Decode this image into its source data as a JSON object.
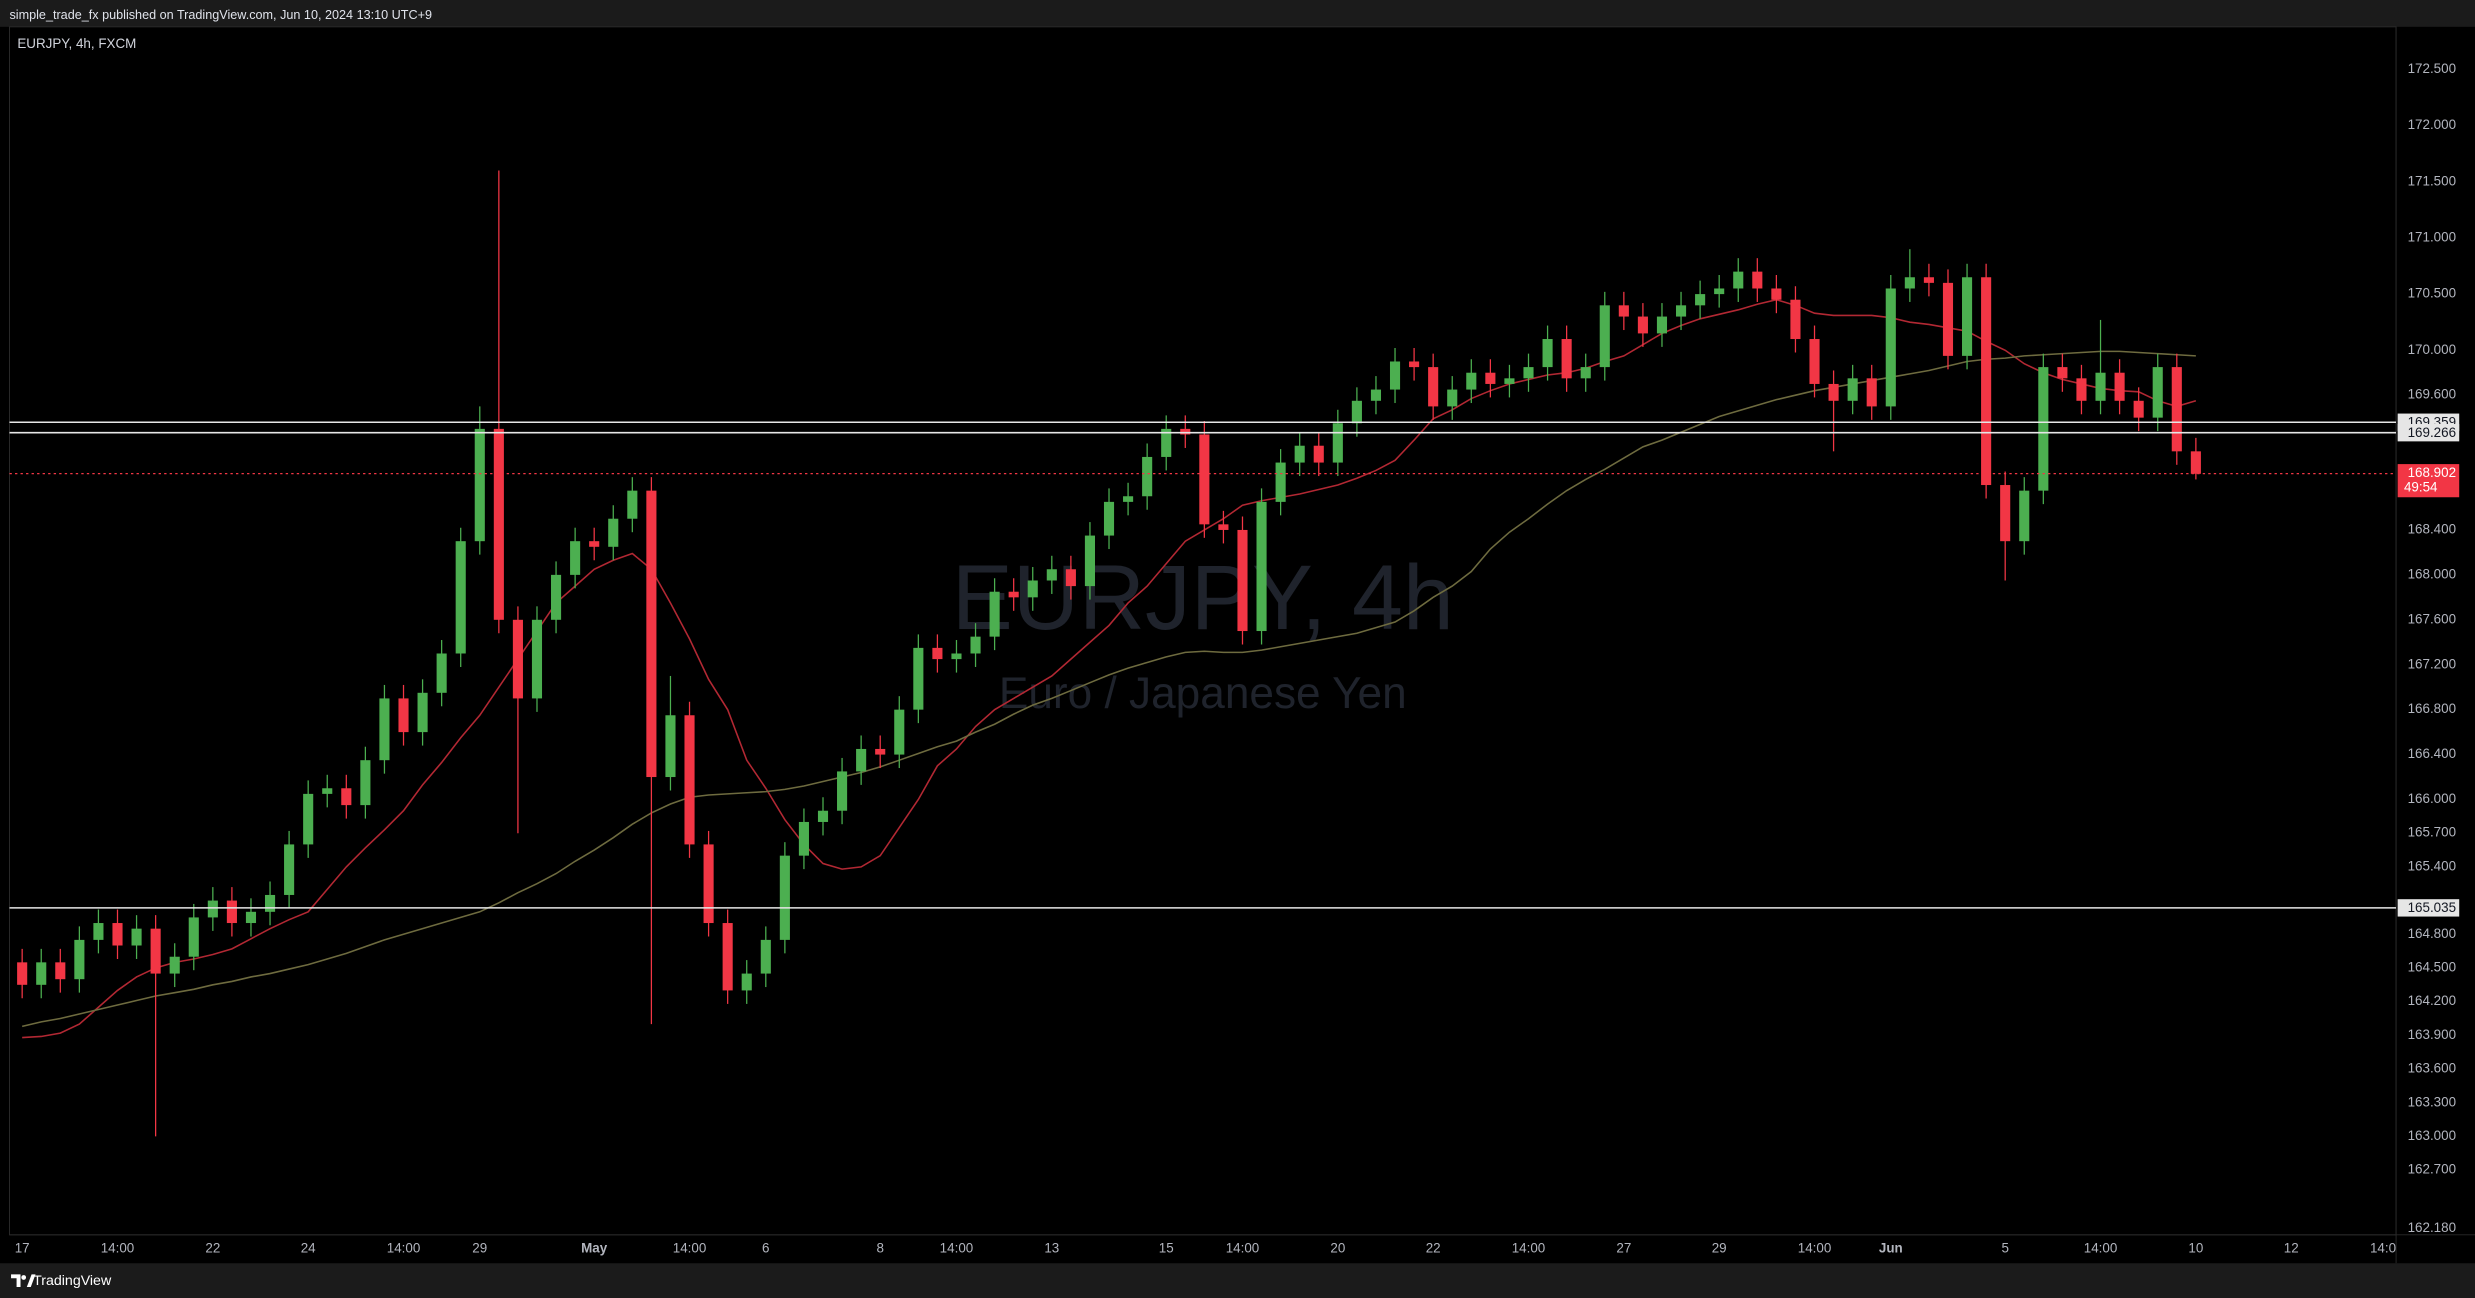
{
  "header": {
    "publisher": "simple_trade_fx published on TradingView.com, Jun 10, 2024 13:10 UTC+9"
  },
  "chart_data": {
    "type": "candlestick",
    "symbol": "EURJPY, 4h, FXCM",
    "watermark": "EURJPY, 4h",
    "watermark_subtitle": "Euro / Japanese Yen",
    "categories": [
      "17",
      null,
      null,
      null,
      null,
      "14:00",
      null,
      null,
      null,
      null,
      "22",
      null,
      null,
      null,
      null,
      "24",
      null,
      null,
      null,
      null,
      "14:00",
      null,
      null,
      null,
      "29",
      null,
      null,
      null,
      null,
      null,
      "May",
      null,
      null,
      null,
      null,
      "14:00",
      null,
      null,
      null,
      "6",
      null,
      null,
      null,
      null,
      null,
      "8",
      null,
      null,
      null,
      "14:00",
      null,
      null,
      null,
      null,
      "13",
      null,
      null,
      null,
      null,
      null,
      "15",
      null,
      null,
      null,
      "14:00",
      null,
      null,
      null,
      null,
      "20",
      null,
      null,
      null,
      null,
      "22",
      null,
      null,
      null,
      null,
      "14:00",
      null,
      null,
      null,
      null,
      "27",
      null,
      null,
      null,
      null,
      "29",
      null,
      null,
      null,
      null,
      "14:00",
      null,
      null,
      null,
      "Jun",
      null,
      null,
      null,
      null,
      null,
      "5",
      null,
      null,
      null,
      null,
      "14:00",
      null,
      null,
      null,
      null,
      "10",
      null,
      null,
      null,
      null,
      "12",
      null,
      null,
      null,
      null,
      "14:0"
    ],
    "open": [
      164.55,
      164.35,
      164.55,
      164.4,
      164.75,
      164.9,
      164.7,
      164.85,
      164.45,
      164.6,
      164.95,
      165.1,
      164.9,
      165.0,
      165.15,
      165.6,
      166.05,
      166.1,
      165.95,
      166.35,
      166.9,
      166.6,
      166.95,
      167.3,
      168.3,
      169.3,
      167.6,
      166.9,
      167.6,
      168.0,
      168.3,
      168.25,
      168.5,
      168.75,
      166.2,
      166.75,
      165.6,
      164.9,
      164.3,
      164.45,
      164.75,
      165.5,
      165.8,
      165.9,
      166.25,
      166.45,
      166.4,
      166.8,
      167.35,
      167.25,
      167.3,
      167.45,
      167.85,
      167.8,
      167.95,
      168.05,
      167.9,
      168.35,
      168.65,
      168.7,
      169.05,
      169.3,
      169.25,
      168.45,
      168.4,
      167.5,
      168.65,
      169.0,
      169.15,
      169.0,
      169.35,
      169.55,
      169.65,
      169.9,
      169.85,
      169.5,
      169.65,
      169.8,
      169.7,
      169.75,
      169.85,
      170.1,
      169.75,
      169.85,
      170.4,
      170.3,
      170.15,
      170.3,
      170.4,
      170.5,
      170.55,
      170.7,
      170.55,
      170.45,
      170.1,
      169.7,
      169.55,
      169.75,
      169.5,
      170.55,
      170.65,
      170.6,
      169.95,
      170.65,
      168.8,
      168.3,
      168.75,
      169.85,
      169.75,
      169.55,
      169.8,
      169.55,
      169.4,
      169.85,
      169.1,
      null,
      null,
      null,
      null,
      null,
      null,
      null,
      null,
      null,
      null
    ],
    "high": [
      164.67,
      164.67,
      164.67,
      164.87,
      165.02,
      165.02,
      164.97,
      164.97,
      164.72,
      165.07,
      165.22,
      165.22,
      165.12,
      165.27,
      165.72,
      166.17,
      166.22,
      166.22,
      166.47,
      167.02,
      167.02,
      167.07,
      167.42,
      168.42,
      169.5,
      171.6,
      167.72,
      167.72,
      168.12,
      168.42,
      168.42,
      168.62,
      168.87,
      168.87,
      167.1,
      166.87,
      165.72,
      165.02,
      164.57,
      164.87,
      165.62,
      165.92,
      166.02,
      166.37,
      166.57,
      166.57,
      166.92,
      167.47,
      167.47,
      167.42,
      167.57,
      167.97,
      167.97,
      168.07,
      168.17,
      168.17,
      168.47,
      168.77,
      168.82,
      169.17,
      169.42,
      169.42,
      169.37,
      168.57,
      168.52,
      168.77,
      169.12,
      169.27,
      169.27,
      169.47,
      169.67,
      169.77,
      170.02,
      170.02,
      169.97,
      169.77,
      169.92,
      169.92,
      169.87,
      169.97,
      170.22,
      170.22,
      169.97,
      170.52,
      170.52,
      170.42,
      170.42,
      170.52,
      170.62,
      170.67,
      170.82,
      170.82,
      170.67,
      170.57,
      170.22,
      169.82,
      169.87,
      169.87,
      170.67,
      170.9,
      170.77,
      170.72,
      170.77,
      170.77,
      168.92,
      168.87,
      169.97,
      169.97,
      169.87,
      170.27,
      169.92,
      169.67,
      169.97,
      169.97,
      169.22,
      null,
      null,
      null,
      null,
      null,
      null,
      null,
      null,
      null,
      null
    ],
    "low": [
      164.23,
      164.23,
      164.28,
      164.28,
      164.63,
      164.58,
      164.58,
      163.0,
      164.33,
      164.48,
      164.83,
      164.78,
      164.78,
      164.88,
      165.03,
      165.48,
      165.93,
      165.83,
      165.83,
      166.23,
      166.48,
      166.48,
      166.83,
      167.18,
      168.18,
      167.48,
      165.7,
      166.78,
      167.48,
      167.88,
      168.13,
      168.13,
      168.38,
      164.0,
      166.08,
      165.48,
      164.78,
      164.18,
      164.18,
      164.33,
      164.63,
      165.38,
      165.68,
      165.78,
      166.13,
      166.28,
      166.28,
      166.68,
      167.13,
      167.13,
      167.18,
      167.33,
      167.68,
      167.68,
      167.83,
      167.78,
      167.78,
      168.23,
      168.53,
      168.58,
      168.93,
      169.13,
      168.33,
      168.28,
      167.38,
      167.38,
      168.53,
      168.88,
      168.88,
      168.88,
      169.23,
      169.43,
      169.53,
      169.73,
      169.38,
      169.38,
      169.53,
      169.58,
      169.58,
      169.63,
      169.73,
      169.63,
      169.63,
      169.73,
      170.18,
      170.03,
      170.03,
      170.18,
      170.28,
      170.38,
      170.43,
      170.43,
      170.33,
      169.98,
      169.58,
      169.1,
      169.43,
      169.38,
      169.38,
      170.43,
      170.48,
      169.83,
      169.83,
      168.68,
      167.95,
      168.18,
      168.63,
      169.63,
      169.43,
      169.43,
      169.43,
      169.28,
      169.28,
      168.98,
      168.85,
      null,
      null,
      null,
      null,
      null,
      null,
      null,
      null,
      null,
      null
    ],
    "close": [
      164.35,
      164.55,
      164.4,
      164.75,
      164.9,
      164.7,
      164.85,
      164.45,
      164.6,
      164.95,
      165.1,
      164.9,
      165.0,
      165.15,
      165.6,
      166.05,
      166.1,
      165.95,
      166.35,
      166.9,
      166.6,
      166.95,
      167.3,
      168.3,
      169.3,
      167.6,
      166.9,
      167.6,
      168.0,
      168.3,
      168.25,
      168.5,
      168.75,
      166.2,
      166.75,
      165.6,
      164.9,
      164.3,
      164.45,
      164.75,
      165.5,
      165.8,
      165.9,
      166.25,
      166.45,
      166.4,
      166.8,
      167.35,
      167.25,
      167.3,
      167.45,
      167.85,
      167.8,
      167.95,
      168.05,
      167.9,
      168.35,
      168.65,
      168.7,
      169.05,
      169.3,
      169.25,
      168.45,
      168.4,
      167.5,
      168.65,
      169.0,
      169.15,
      169.0,
      169.35,
      169.55,
      169.65,
      169.9,
      169.85,
      169.5,
      169.65,
      169.8,
      169.7,
      169.75,
      169.85,
      170.1,
      169.75,
      169.85,
      170.4,
      170.3,
      170.15,
      170.3,
      170.4,
      170.5,
      170.55,
      170.7,
      170.55,
      170.45,
      170.1,
      169.7,
      169.55,
      169.75,
      169.5,
      170.55,
      170.65,
      170.6,
      169.95,
      170.65,
      168.8,
      168.3,
      168.75,
      169.85,
      169.75,
      169.55,
      169.8,
      169.55,
      169.4,
      169.85,
      169.1,
      168.9,
      null,
      null,
      null,
      null,
      null,
      null,
      null,
      null,
      null,
      null
    ],
    "up_color": "#4caf50",
    "down_color": "#f23645",
    "moving_averages": [
      {
        "color": "#b22833",
        "values": [
          163.88,
          163.89,
          163.92,
          164.0,
          164.15,
          164.3,
          164.42,
          164.5,
          164.55,
          164.58,
          164.62,
          164.67,
          164.76,
          164.85,
          164.93,
          165.0,
          165.2,
          165.4,
          165.57,
          165.73,
          165.9,
          166.13,
          166.33,
          166.55,
          166.75,
          167.0,
          167.25,
          167.5,
          167.75,
          167.9,
          168.05,
          168.13,
          168.19,
          168.05,
          167.75,
          167.43,
          167.07,
          166.8,
          166.35,
          166.1,
          165.82,
          165.6,
          165.43,
          165.38,
          165.4,
          165.5,
          165.75,
          166.0,
          166.3,
          166.45,
          166.65,
          166.8,
          166.9,
          167.0,
          167.1,
          167.25,
          167.4,
          167.55,
          167.75,
          167.9,
          168.1,
          168.3,
          168.4,
          168.5,
          168.62,
          168.66,
          168.69,
          168.72,
          168.76,
          168.8,
          168.86,
          168.93,
          169.02,
          169.2,
          169.39,
          169.47,
          169.57,
          169.64,
          169.7,
          169.74,
          169.78,
          169.8,
          169.84,
          169.9,
          169.95,
          170.05,
          170.15,
          170.22,
          170.28,
          170.32,
          170.36,
          170.41,
          170.45,
          170.4,
          170.33,
          170.31,
          170.31,
          170.31,
          170.29,
          170.25,
          170.23,
          170.2,
          170.17,
          170.08,
          170.0,
          169.88,
          169.8,
          169.74,
          169.7,
          169.66,
          169.64,
          169.63,
          169.55,
          169.5,
          169.55,
          null,
          null,
          null,
          null,
          null,
          null,
          null,
          null,
          null,
          null
        ]
      },
      {
        "color": "#6e6b3f",
        "values": [
          163.98,
          164.02,
          164.05,
          164.09,
          164.13,
          164.17,
          164.21,
          164.25,
          164.28,
          164.31,
          164.35,
          164.38,
          164.42,
          164.45,
          164.49,
          164.53,
          164.58,
          164.63,
          164.69,
          164.75,
          164.8,
          164.85,
          164.9,
          164.95,
          165.0,
          165.08,
          165.17,
          165.25,
          165.34,
          165.45,
          165.55,
          165.66,
          165.78,
          165.88,
          165.96,
          166.02,
          166.04,
          166.05,
          166.06,
          166.07,
          166.09,
          166.12,
          166.16,
          166.2,
          166.24,
          166.29,
          166.35,
          166.41,
          166.47,
          166.52,
          166.6,
          166.67,
          166.76,
          166.84,
          166.9,
          166.97,
          167.04,
          167.11,
          167.17,
          167.22,
          167.27,
          167.31,
          167.32,
          167.31,
          167.31,
          167.33,
          167.36,
          167.39,
          167.42,
          167.45,
          167.48,
          167.53,
          167.58,
          167.68,
          167.8,
          167.9,
          168.03,
          168.23,
          168.38,
          168.5,
          168.63,
          168.75,
          168.85,
          168.94,
          169.04,
          169.14,
          169.2,
          169.27,
          169.34,
          169.41,
          169.46,
          169.51,
          169.56,
          169.6,
          169.64,
          169.67,
          169.7,
          169.73,
          169.76,
          169.79,
          169.82,
          169.86,
          169.9,
          169.92,
          169.93,
          169.95,
          169.96,
          169.97,
          169.98,
          169.99,
          169.99,
          169.98,
          169.97,
          169.96,
          169.95,
          null,
          null,
          null,
          null,
          null,
          null,
          null,
          null,
          null,
          null
        ]
      }
    ],
    "ylim": [
      162.18,
      172.5
    ],
    "yticks": [
      {
        "value": 172.5,
        "label": "172.500"
      },
      {
        "value": 172,
        "label": "172.000"
      },
      {
        "value": 171.5,
        "label": "171.500"
      },
      {
        "value": 171,
        "label": "171.000"
      },
      {
        "value": 170.5,
        "label": "170.500"
      },
      {
        "value": 170,
        "label": "170.000"
      },
      {
        "value": 169.6,
        "label": "169.600"
      },
      {
        "value": 168.4,
        "label": "168.400"
      },
      {
        "value": 168,
        "label": "168.000"
      },
      {
        "value": 167.6,
        "label": "167.600"
      },
      {
        "value": 167.2,
        "label": "167.200"
      },
      {
        "value": 166.8,
        "label": "166.800"
      },
      {
        "value": 166.4,
        "label": "166.400"
      },
      {
        "value": 166,
        "label": "166.000"
      },
      {
        "value": 165.7,
        "label": "165.700"
      },
      {
        "value": 165.4,
        "label": "165.400"
      },
      {
        "value": 164.8,
        "label": "164.800"
      },
      {
        "value": 164.5,
        "label": "164.500"
      },
      {
        "value": 164.2,
        "label": "164.200"
      },
      {
        "value": 163.9,
        "label": "163.900"
      },
      {
        "value": 163.6,
        "label": "163.600"
      },
      {
        "value": 163.3,
        "label": "163.300"
      },
      {
        "value": 163,
        "label": "163.000"
      },
      {
        "value": 162.7,
        "label": "162.700"
      },
      {
        "value": 162.18,
        "label": "162.180"
      }
    ],
    "price_lines": [
      169.359,
      169.266,
      165.035
    ],
    "last_price": 168.902,
    "countdown": "49:54"
  },
  "footer": {
    "brand": "TradingView"
  }
}
